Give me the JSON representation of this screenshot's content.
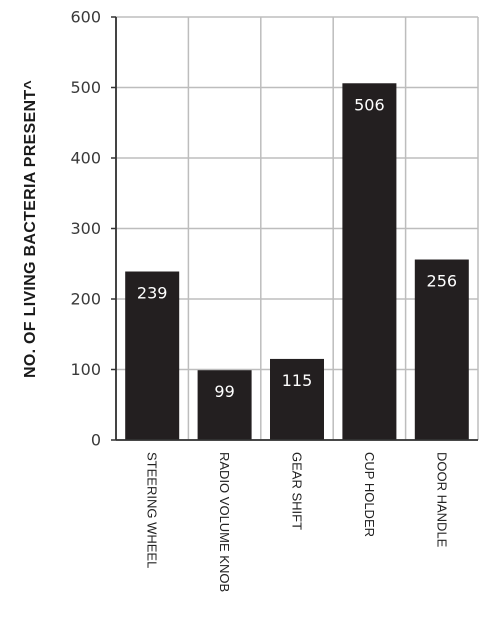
{
  "chart_data": {
    "type": "bar",
    "categories": [
      "STEERING WHEEL",
      "RADIO VOLUME KNOB",
      "GEAR SHIFT",
      "CUP HOLDER",
      "DOOR HANDLE"
    ],
    "values": [
      239,
      99,
      115,
      506,
      256
    ],
    "ylabel": "NO. OF LIVING BACTERIA PRESENT^",
    "ylim": [
      0,
      600
    ],
    "yticks": [
      0,
      100,
      200,
      300,
      400,
      500,
      600
    ],
    "grid": true,
    "bar_color": "#231f20",
    "data_label_color": "#ffffff"
  }
}
